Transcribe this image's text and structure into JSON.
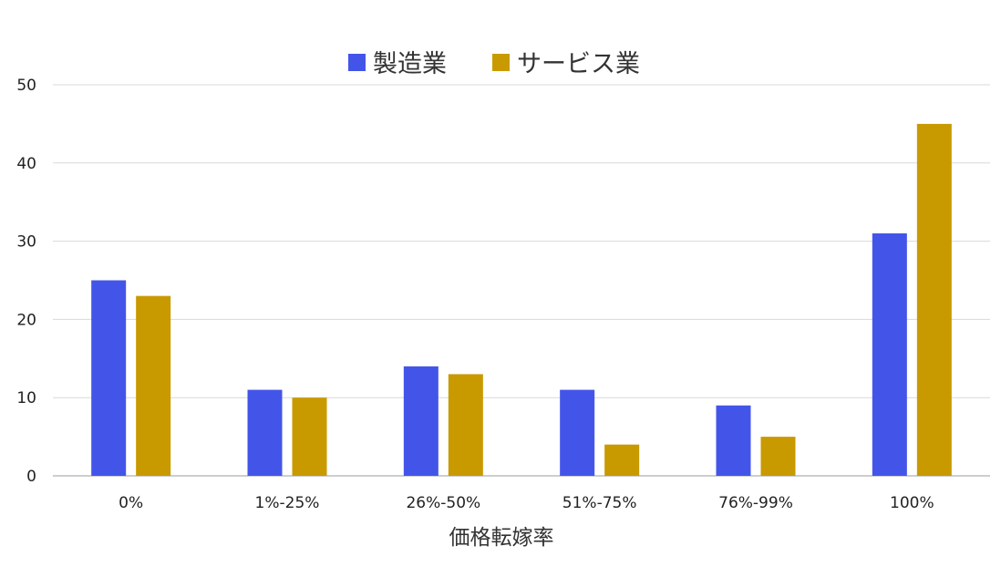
{
  "chart_data": {
    "type": "bar",
    "title": "",
    "xlabel": "価格転嫁率",
    "ylabel": "",
    "categories": [
      "0%",
      "1%-25%",
      "26%-50%",
      "51%-75%",
      "76%-99%",
      "100%"
    ],
    "series": [
      {
        "name": "製造業",
        "color": "#4355e8",
        "values": [
          25,
          11,
          14,
          11,
          9,
          31
        ]
      },
      {
        "name": "サービス業",
        "color": "#c89a00",
        "values": [
          23,
          10,
          13,
          4,
          5,
          45
        ]
      }
    ],
    "ylim": [
      0,
      50
    ],
    "yticks": [
      0,
      10,
      20,
      30,
      40,
      50
    ],
    "grid": true,
    "legend": "top-center"
  }
}
